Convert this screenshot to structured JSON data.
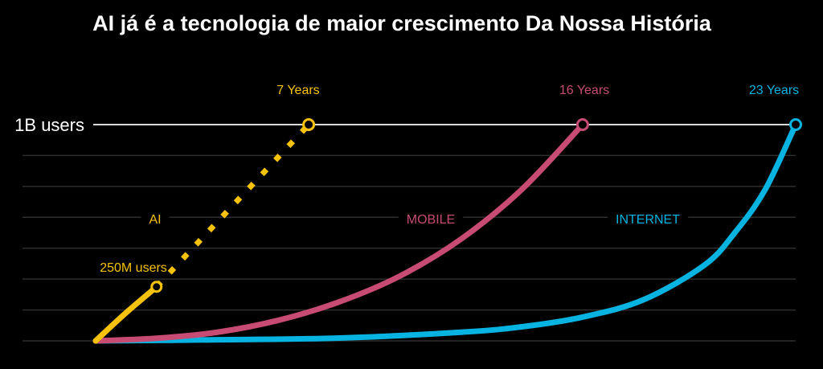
{
  "chart_data": {
    "type": "line",
    "title": "AI já é a tecnologia de maior crescimento Da Nossa História",
    "y_reference_label": "1B users",
    "series": [
      {
        "name": "AI",
        "color": "#f7c20c",
        "years": [
          0,
          1,
          2,
          3,
          4,
          5,
          6,
          7
        ],
        "users": [
          0,
          0.13,
          0.25,
          0.4,
          0.55,
          0.7,
          0.85,
          1.0
        ],
        "actual_until": 0.25,
        "milestone_label": "250M users",
        "end_label": "7 Years"
      },
      {
        "name": "MOBILE",
        "color": "#c74b73",
        "years": [
          0,
          2,
          4,
          6,
          8,
          10,
          12,
          14,
          16
        ],
        "users": [
          0,
          0.012,
          0.04,
          0.095,
          0.18,
          0.3,
          0.47,
          0.7,
          1.0
        ],
        "end_label": "16 Years"
      },
      {
        "name": "INTERNET",
        "color": "#07b3e0",
        "years": [
          0,
          4,
          8,
          12,
          14,
          16,
          18,
          20,
          21,
          22,
          23
        ],
        "users": [
          0,
          0.005,
          0.013,
          0.04,
          0.065,
          0.11,
          0.19,
          0.35,
          0.5,
          0.7,
          1.0
        ],
        "end_label": "23 Years"
      }
    ],
    "x_range_years": [
      0,
      23
    ],
    "y_range_users_billion": [
      0,
      1
    ]
  }
}
